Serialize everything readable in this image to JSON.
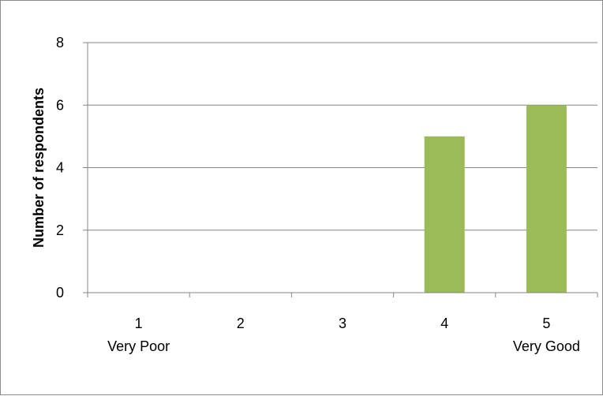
{
  "chart_data": {
    "type": "bar",
    "categories": [
      "1",
      "2",
      "3",
      "4",
      "5"
    ],
    "category_sublabels": [
      "Very Poor",
      "",
      "",
      "",
      "Very Good"
    ],
    "values": [
      0,
      0,
      0,
      5,
      6
    ],
    "title": "",
    "xlabel": "",
    "ylabel": "Number of respondents",
    "ylim": [
      0,
      8
    ],
    "yticks": [
      0,
      2,
      4,
      6,
      8
    ],
    "grid": true,
    "legend": "none",
    "colors": {
      "bar": "#9BBB59",
      "grid": "#868686",
      "axis": "#868686"
    }
  }
}
